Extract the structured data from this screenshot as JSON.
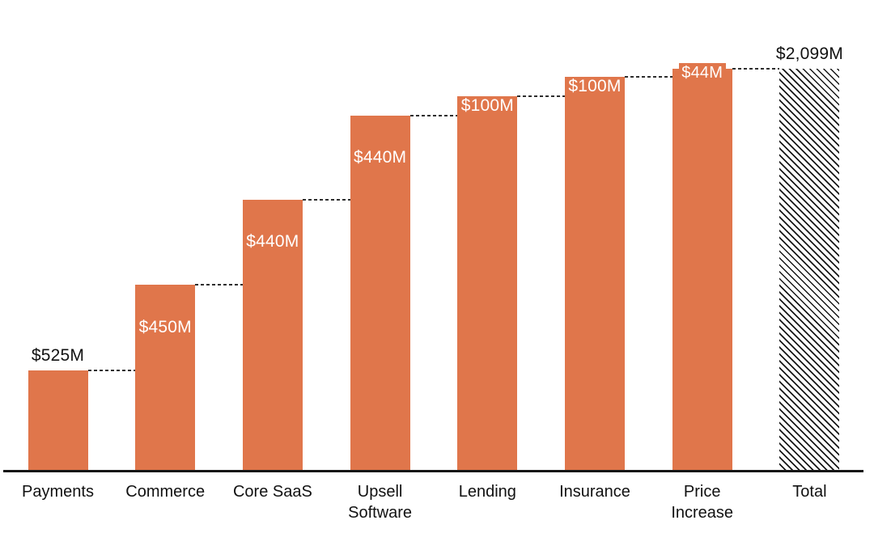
{
  "chart_data": {
    "type": "bar",
    "subtype": "waterfall",
    "title": "",
    "xlabel": "",
    "ylabel": "",
    "grid": false,
    "legend": null,
    "ylim": [
      0,
      2099
    ],
    "categories": [
      "Payments",
      "Commerce",
      "Core SaaS",
      "Upsell\nSoftware",
      "Lending",
      "Insurance",
      "Price\nIncrease",
      "Total"
    ],
    "steps": [
      {
        "category": "Payments",
        "value": 525,
        "label": "$525M",
        "label_position": "above",
        "is_total": false
      },
      {
        "category": "Commerce",
        "value": 450,
        "label": "$450M",
        "label_position": "inside",
        "is_total": false
      },
      {
        "category": "Core SaaS",
        "value": 440,
        "label": "$440M",
        "label_position": "inside",
        "is_total": false
      },
      {
        "category": "Upsell\nSoftware",
        "value": 440,
        "label": "$440M",
        "label_position": "inside",
        "is_total": false
      },
      {
        "category": "Lending",
        "value": 100,
        "label": "$100M",
        "label_position": "inside",
        "is_total": false
      },
      {
        "category": "Insurance",
        "value": 100,
        "label": "$100M",
        "label_position": "inside",
        "is_total": false
      },
      {
        "category": "Price\nIncrease",
        "value": 44,
        "label": "$44M",
        "label_position": "badge",
        "is_total": false
      },
      {
        "category": "Total",
        "value": 2099,
        "label": "$2,099M",
        "label_position": "above",
        "is_total": true
      }
    ],
    "total": 2099,
    "colors": {
      "increase_bar": "#E0764B",
      "total_bar_pattern": "black-diagonal-hatch-on-white",
      "value_label_inside": "#FFFFFF",
      "value_label_outside": "#111111",
      "connector": "#2E2E2E",
      "axis": "#161616",
      "background": "#FFFFFF"
    },
    "connector_style": "dashed"
  }
}
